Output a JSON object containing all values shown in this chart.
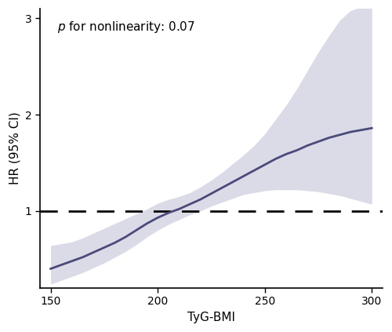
{
  "title": "",
  "xlabel": "TyG-BMI",
  "ylabel": "HR (95% CI)",
  "annotation": "p for nonlinearity: 0.07",
  "xlim": [
    145,
    305
  ],
  "ylim": [
    0.2,
    3.1
  ],
  "xticks": [
    150,
    200,
    250,
    300
  ],
  "yticks": [
    1,
    2,
    3
  ],
  "line_color": "#4a4a7a",
  "ci_color": "#c8c8dc",
  "ci_alpha": 0.65,
  "dashed_y": 1.0,
  "dashed_color": "#000000",
  "curve_x": [
    150,
    155,
    160,
    165,
    170,
    175,
    180,
    185,
    190,
    195,
    200,
    205,
    210,
    215,
    220,
    225,
    230,
    235,
    240,
    245,
    250,
    255,
    260,
    265,
    270,
    275,
    280,
    285,
    290,
    295,
    300
  ],
  "curve_y": [
    0.4,
    0.44,
    0.48,
    0.52,
    0.57,
    0.62,
    0.67,
    0.73,
    0.8,
    0.87,
    0.93,
    0.98,
    1.02,
    1.07,
    1.12,
    1.18,
    1.24,
    1.3,
    1.36,
    1.42,
    1.48,
    1.54,
    1.59,
    1.63,
    1.68,
    1.72,
    1.76,
    1.79,
    1.82,
    1.84,
    1.86
  ],
  "ci_lower": [
    0.24,
    0.28,
    0.32,
    0.36,
    0.41,
    0.46,
    0.52,
    0.58,
    0.65,
    0.73,
    0.8,
    0.86,
    0.91,
    0.96,
    1.0,
    1.05,
    1.09,
    1.13,
    1.17,
    1.19,
    1.21,
    1.22,
    1.22,
    1.22,
    1.21,
    1.2,
    1.18,
    1.16,
    1.13,
    1.1,
    1.07
  ],
  "ci_upper": [
    0.64,
    0.66,
    0.68,
    0.72,
    0.77,
    0.82,
    0.87,
    0.92,
    0.97,
    1.02,
    1.08,
    1.12,
    1.15,
    1.19,
    1.25,
    1.32,
    1.4,
    1.49,
    1.58,
    1.68,
    1.8,
    1.95,
    2.1,
    2.27,
    2.46,
    2.65,
    2.82,
    2.98,
    3.08,
    3.12,
    3.13
  ],
  "line_width": 2.0,
  "label_fontsize": 11,
  "tick_fontsize": 10,
  "annotation_fontsize": 11,
  "background_color": "#ffffff",
  "spine_color": "#000000"
}
